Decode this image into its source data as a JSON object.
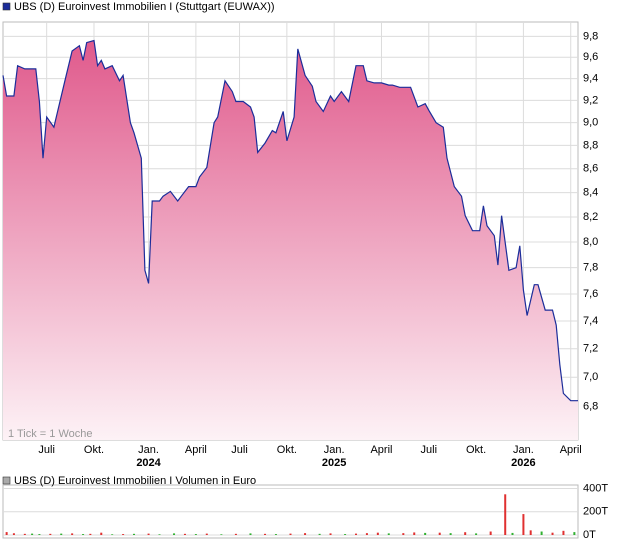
{
  "chart_data": [
    {
      "type": "area",
      "annotation": "1 Tick = 1 Woche",
      "log": true,
      "grid": true,
      "series": [
        {
          "name": "UBS (D) Euroinvest Immobilien I (Stuttgart (EUWAX))",
          "color": "#1c2d9a",
          "x": [
            0,
            1,
            3,
            4,
            6,
            9,
            10,
            11,
            12,
            14,
            15,
            17,
            19,
            21,
            22,
            23,
            25,
            26,
            27,
            28,
            30,
            32,
            33,
            35,
            36,
            38,
            39,
            40,
            41,
            43,
            44,
            46,
            48,
            49,
            51,
            53,
            54,
            56,
            58,
            59,
            61,
            63,
            64,
            66,
            68,
            69,
            70,
            72,
            74,
            75,
            77,
            78,
            80,
            81,
            83,
            85,
            86,
            88,
            90,
            91,
            93,
            95,
            97,
            99,
            100,
            102,
            104,
            106,
            107,
            109,
            111,
            112,
            114,
            116,
            117,
            119,
            121,
            122,
            124,
            126,
            127,
            129,
            131,
            132,
            133,
            135,
            136,
            137,
            139,
            141,
            142,
            143,
            144,
            146,
            147,
            149,
            151,
            152,
            153,
            154,
            156,
            158
          ],
          "values": [
            9.43,
            9.24,
            9.24,
            9.52,
            9.49,
            9.49,
            9.19,
            8.69,
            9.05,
            8.96,
            9.1,
            9.38,
            9.66,
            9.71,
            9.57,
            9.74,
            9.76,
            9.52,
            9.57,
            9.49,
            9.52,
            9.38,
            9.43,
            9.0,
            8.91,
            8.69,
            7.78,
            7.68,
            8.33,
            8.33,
            8.37,
            8.41,
            8.33,
            8.37,
            8.45,
            8.45,
            8.53,
            8.61,
            9.0,
            9.05,
            9.38,
            9.28,
            9.19,
            9.19,
            9.14,
            9.05,
            8.74,
            8.82,
            8.93,
            8.91,
            9.1,
            8.84,
            9.05,
            9.68,
            9.43,
            9.33,
            9.19,
            9.1,
            9.24,
            9.19,
            9.28,
            9.19,
            9.52,
            9.52,
            9.38,
            9.36,
            9.36,
            9.34,
            9.34,
            9.32,
            9.32,
            9.32,
            9.14,
            9.17,
            9.11,
            9.0,
            8.96,
            8.69,
            8.45,
            8.37,
            8.21,
            8.09,
            8.09,
            8.29,
            8.13,
            8.05,
            7.82,
            8.21,
            7.78,
            7.8,
            7.97,
            7.63,
            7.44,
            7.67,
            7.67,
            7.48,
            7.48,
            7.37,
            7.09,
            6.89,
            6.84,
            6.84
          ]
        }
      ],
      "xlim": [
        0,
        158
      ],
      "xticks": [
        {
          "value": 12,
          "label": "Juli"
        },
        {
          "value": 25,
          "label": "Okt."
        },
        {
          "value": 40,
          "label": "Jan."
        },
        {
          "value": 53,
          "label": "April"
        },
        {
          "value": 65,
          "label": "Juli"
        },
        {
          "value": 78,
          "label": "Okt."
        },
        {
          "value": 91,
          "label": "Jan."
        },
        {
          "value": 104,
          "label": "April"
        },
        {
          "value": 117,
          "label": "Juli"
        },
        {
          "value": 130,
          "label": "Okt."
        },
        {
          "value": 143,
          "label": "Jan."
        },
        {
          "value": 156,
          "label": "April"
        }
      ],
      "xtick_years": [
        {
          "value": 40,
          "label": "2024"
        },
        {
          "value": 91,
          "label": "2025"
        },
        {
          "value": 143,
          "label": "2026"
        }
      ],
      "ylim": [
        6.58,
        9.94
      ],
      "yticks": [
        {
          "value": 6.8,
          "label": "6,8"
        },
        {
          "value": 7.0,
          "label": "7,0"
        },
        {
          "value": 7.2,
          "label": "7,2"
        },
        {
          "value": 7.4,
          "label": "7,4"
        },
        {
          "value": 7.6,
          "label": "7,6"
        },
        {
          "value": 7.8,
          "label": "7,8"
        },
        {
          "value": 8.0,
          "label": "8,0"
        },
        {
          "value": 8.2,
          "label": "8,2"
        },
        {
          "value": 8.4,
          "label": "8,4"
        },
        {
          "value": 8.6,
          "label": "8,6"
        },
        {
          "value": 8.8,
          "label": "8,8"
        },
        {
          "value": 9.0,
          "label": "9,0"
        },
        {
          "value": 9.2,
          "label": "9,2"
        },
        {
          "value": 9.4,
          "label": "9,4"
        },
        {
          "value": 9.6,
          "label": "9,6"
        },
        {
          "value": 9.8,
          "label": "9,8"
        }
      ]
    },
    {
      "type": "bar",
      "grid": true,
      "series": [
        {
          "name": "UBS (D) Euroinvest Immobilien I Volumen in Euro",
          "color": "#aaaaaa",
          "x": [
            1,
            3,
            6,
            8,
            10,
            13,
            16,
            19,
            22,
            24,
            27,
            30,
            33,
            36,
            40,
            43,
            47,
            50,
            53,
            56,
            60,
            64,
            68,
            72,
            75,
            79,
            83,
            87,
            90,
            94,
            97,
            100,
            103,
            106,
            110,
            113,
            116,
            120,
            123,
            127,
            130,
            134,
            138,
            140,
            143,
            145,
            148,
            151,
            154,
            157
          ],
          "values": [
            25,
            15,
            10,
            12,
            8,
            10,
            12,
            14,
            8,
            10,
            20,
            6,
            8,
            10,
            12,
            6,
            14,
            10,
            8,
            12,
            6,
            10,
            14,
            10,
            8,
            12,
            16,
            10,
            14,
            8,
            12,
            16,
            20,
            14,
            16,
            22,
            18,
            20,
            16,
            24,
            14,
            30,
            350,
            18,
            180,
            40,
            30,
            20,
            36,
            25
          ],
          "bar_colors": [
            "#e03030",
            "#e03030",
            "#e03030",
            "#30b030",
            "#30b030",
            "#e03030",
            "#30b030",
            "#e03030",
            "#30b030",
            "#e03030",
            "#e03030",
            "#30b030",
            "#e03030",
            "#30b030",
            "#e03030",
            "#30b030",
            "#30b030",
            "#e03030",
            "#30b030",
            "#e03030",
            "#30b030",
            "#e03030",
            "#30b030",
            "#e03030",
            "#30b030",
            "#e03030",
            "#e03030",
            "#30b030",
            "#e03030",
            "#30b030",
            "#e03030",
            "#e03030",
            "#e03030",
            "#30b030",
            "#e03030",
            "#e03030",
            "#30b030",
            "#e03030",
            "#30b030",
            "#e03030",
            "#30b030",
            "#e03030",
            "#e03030",
            "#30b030",
            "#e03030",
            "#e03030",
            "#30b030",
            "#e03030",
            "#e03030",
            "#30b030"
          ]
        }
      ],
      "xlim": [
        0,
        158
      ],
      "ylim": [
        0,
        430
      ],
      "yticks": [
        {
          "value": 0,
          "label": "0T"
        },
        {
          "value": 200,
          "label": "200T"
        },
        {
          "value": 400,
          "label": "400T"
        }
      ]
    }
  ]
}
